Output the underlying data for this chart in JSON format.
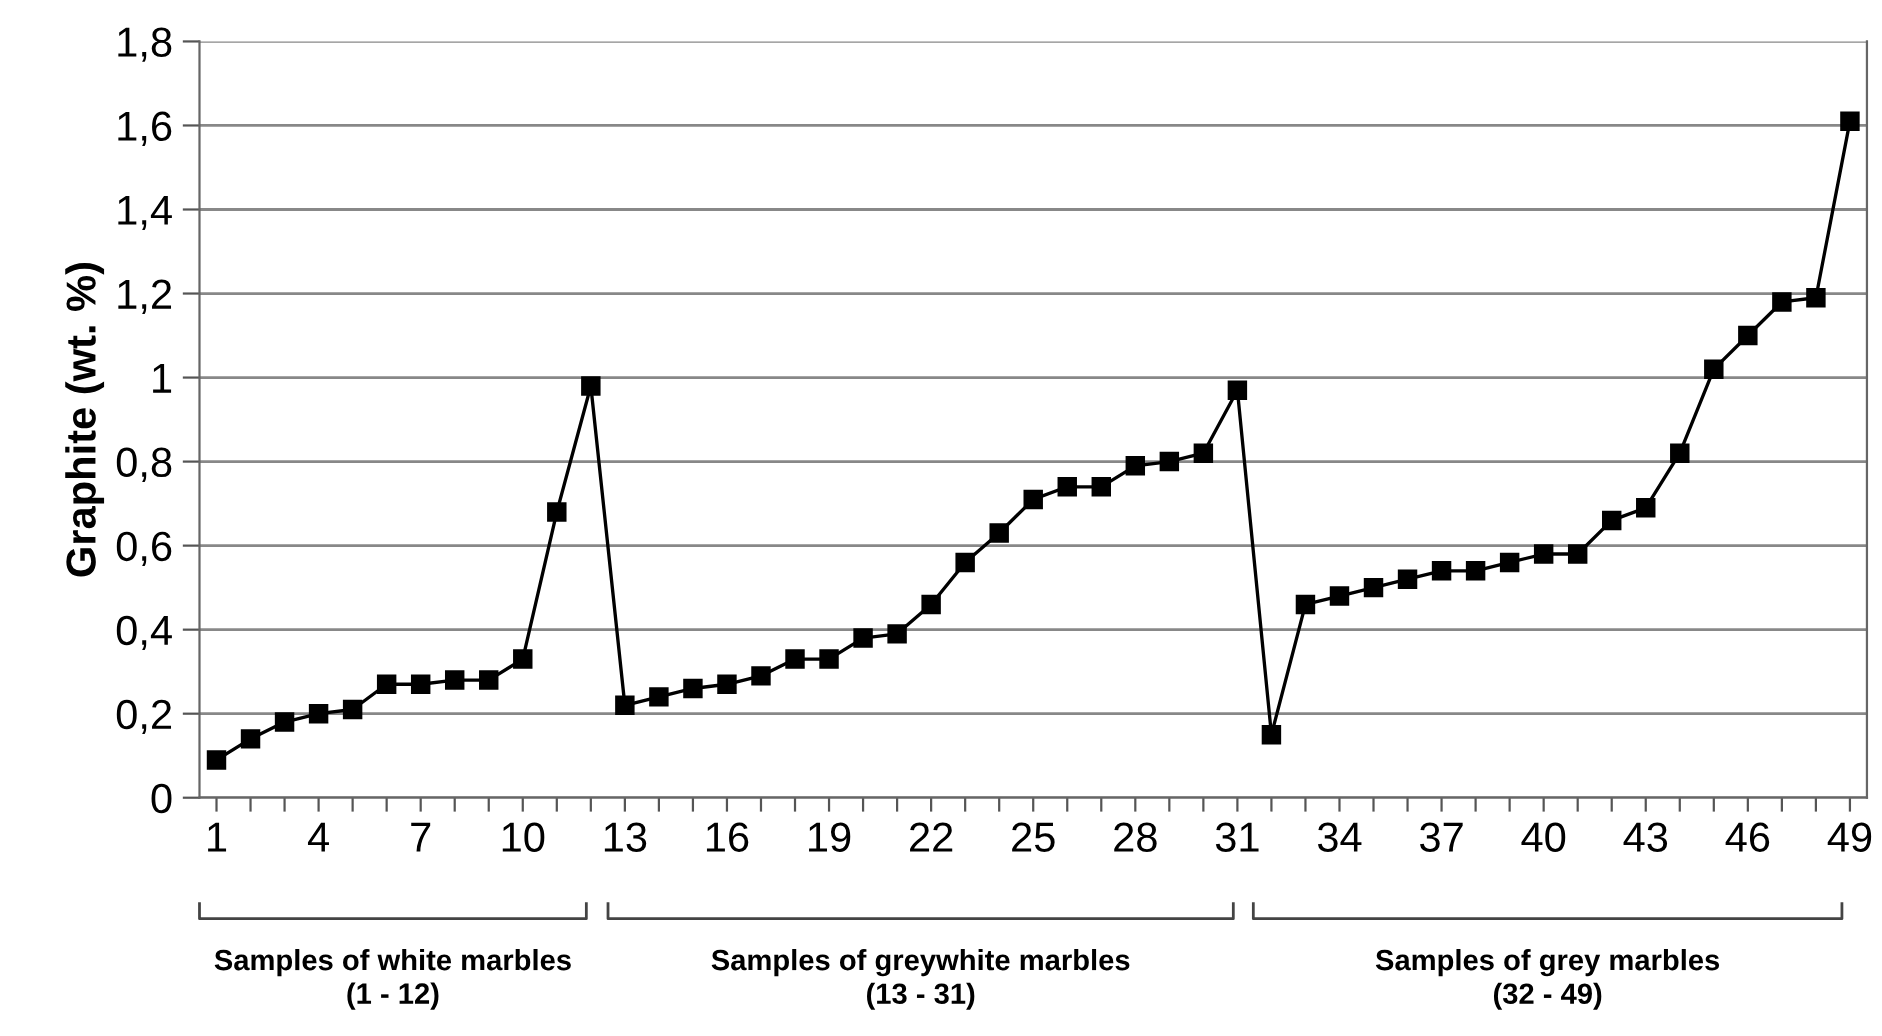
{
  "chart_data": {
    "type": "line",
    "ylabel": "Graphite (wt. %)",
    "x": [
      1,
      2,
      3,
      4,
      5,
      6,
      7,
      8,
      9,
      10,
      11,
      12,
      13,
      14,
      15,
      16,
      17,
      18,
      19,
      20,
      21,
      22,
      23,
      24,
      25,
      26,
      27,
      28,
      29,
      30,
      31,
      32,
      33,
      34,
      35,
      36,
      37,
      38,
      39,
      40,
      41,
      42,
      43,
      44,
      45,
      46,
      47,
      48,
      49
    ],
    "series": [
      {
        "color": "#000000",
        "values": [
          0.09,
          0.14,
          0.18,
          0.2,
          0.21,
          0.27,
          0.27,
          0.28,
          0.28,
          0.33,
          0.68,
          0.98,
          0.22,
          0.24,
          0.26,
          0.27,
          0.29,
          0.33,
          0.33,
          0.38,
          0.39,
          0.46,
          0.56,
          0.63,
          0.71,
          0.74,
          0.74,
          0.79,
          0.8,
          0.82,
          0.97,
          0.15,
          0.46,
          0.48,
          0.5,
          0.52,
          0.54,
          0.54,
          0.56,
          0.58,
          0.58,
          0.66,
          0.69,
          0.82,
          1.02,
          1.1,
          1.18,
          1.19,
          1.61
        ]
      }
    ],
    "xlim": [
      0.5,
      49.5
    ],
    "xticks": [
      1,
      {
        "value": 2,
        "label": null
      },
      {
        "value": 3,
        "label": null
      },
      4,
      {
        "value": 5,
        "label": null
      },
      {
        "value": 6,
        "label": null
      },
      7,
      {
        "value": 8,
        "label": null
      },
      {
        "value": 9,
        "label": null
      },
      10,
      {
        "value": 11,
        "label": null
      },
      {
        "value": 12,
        "label": null
      },
      13,
      {
        "value": 14,
        "label": null
      },
      {
        "value": 15,
        "label": null
      },
      16,
      {
        "value": 17,
        "label": null
      },
      {
        "value": 18,
        "label": null
      },
      19,
      {
        "value": 20,
        "label": null
      },
      {
        "value": 21,
        "label": null
      },
      22,
      {
        "value": 23,
        "label": null
      },
      {
        "value": 24,
        "label": null
      },
      25,
      {
        "value": 26,
        "label": null
      },
      {
        "value": 27,
        "label": null
      },
      28,
      {
        "value": 29,
        "label": null
      },
      {
        "value": 30,
        "label": null
      },
      31,
      {
        "value": 32,
        "label": null
      },
      {
        "value": 33,
        "label": null
      },
      34,
      {
        "value": 35,
        "label": null
      },
      {
        "value": 36,
        "label": null
      },
      37,
      {
        "value": 38,
        "label": null
      },
      {
        "value": 39,
        "label": null
      },
      40,
      {
        "value": 41,
        "label": null
      },
      {
        "value": 42,
        "label": null
      },
      43,
      {
        "value": 44,
        "label": null
      },
      {
        "value": 45,
        "label": null
      },
      46,
      {
        "value": 47,
        "label": null
      },
      {
        "value": 48,
        "label": null
      },
      49
    ],
    "ylim": [
      0,
      1.8
    ],
    "yticks": [
      0,
      {
        "value": 0.2,
        "label": "0,2"
      },
      {
        "value": 0.4,
        "label": "0,4"
      },
      {
        "value": 0.6,
        "label": "0,6"
      },
      {
        "value": 0.8,
        "label": "0,8"
      },
      1,
      {
        "value": 1.2,
        "label": "1,2"
      },
      {
        "value": 1.4,
        "label": "1,4"
      },
      {
        "value": 1.6,
        "label": "1,6"
      },
      {
        "value": 1.8,
        "label": "1,8"
      }
    ],
    "grid": "y",
    "marker": "square",
    "line_style": "solid",
    "legend": false,
    "annotations": [
      "Samples of white marbles\n(1 - 12)",
      "Samples of greywhite marbles\n(13 - 31)",
      "Samples of grey marbles\n(32 - 49)"
    ]
  }
}
